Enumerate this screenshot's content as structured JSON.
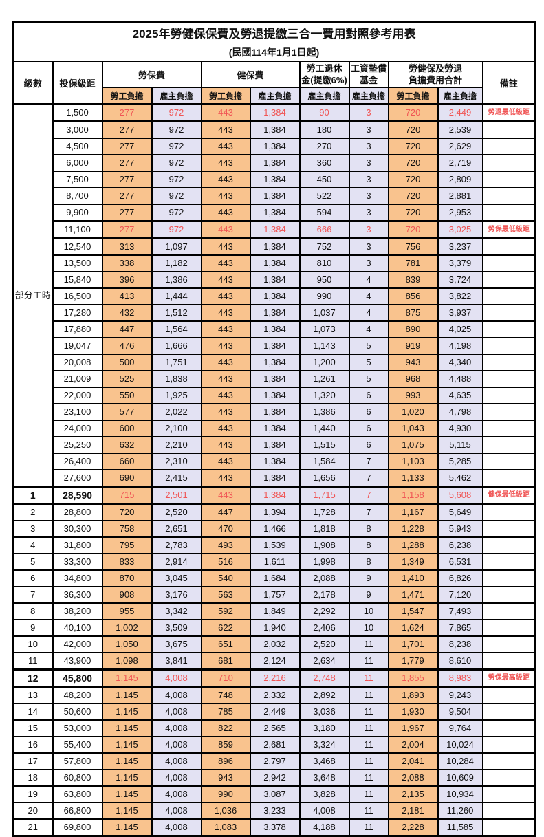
{
  "title": "2025年勞健保保費及勞退提繳三合一費用對照參考用表",
  "subtitle": "(民國114年1月1日起)",
  "colors": {
    "employee_bg": "#F9C38E",
    "employer_bg": "#E3E2F3",
    "highlight_text": "#F05555",
    "border": "#000000"
  },
  "columns": {
    "level": "級數",
    "bracket": "投保級距",
    "labor_insurance": "勞保費",
    "health_insurance": "健保費",
    "pension_l1": "勞工退休",
    "pension_l2": "金(提繳6%)",
    "wage_fund_l1": "工資墊償",
    "wage_fund_l2": "基金",
    "total_l1": "勞健保及勞退",
    "total_l2": "負擔費用合計",
    "remark": "備註",
    "employee_label": "勞工負擔",
    "employer_label": "雇主負擔"
  },
  "part_time_label": "部分工時",
  "rows": [
    {
      "lv": "",
      "br": "1,500",
      "v": [
        "277",
        "972",
        "443",
        "1,384",
        "90",
        "3",
        "720",
        "2,449"
      ],
      "rm": "勞退最低級距",
      "hl": true,
      "b": false
    },
    {
      "lv": "",
      "br": "3,000",
      "v": [
        "277",
        "972",
        "443",
        "1,384",
        "180",
        "3",
        "720",
        "2,539"
      ],
      "rm": "",
      "hl": false,
      "b": false
    },
    {
      "lv": "",
      "br": "4,500",
      "v": [
        "277",
        "972",
        "443",
        "1,384",
        "270",
        "3",
        "720",
        "2,629"
      ],
      "rm": "",
      "hl": false,
      "b": false
    },
    {
      "lv": "",
      "br": "6,000",
      "v": [
        "277",
        "972",
        "443",
        "1,384",
        "360",
        "3",
        "720",
        "2,719"
      ],
      "rm": "",
      "hl": false,
      "b": false
    },
    {
      "lv": "",
      "br": "7,500",
      "v": [
        "277",
        "972",
        "443",
        "1,384",
        "450",
        "3",
        "720",
        "2,809"
      ],
      "rm": "",
      "hl": false,
      "b": false
    },
    {
      "lv": "",
      "br": "8,700",
      "v": [
        "277",
        "972",
        "443",
        "1,384",
        "522",
        "3",
        "720",
        "2,881"
      ],
      "rm": "",
      "hl": false,
      "b": false
    },
    {
      "lv": "",
      "br": "9,900",
      "v": [
        "277",
        "972",
        "443",
        "1,384",
        "594",
        "3",
        "720",
        "2,953"
      ],
      "rm": "",
      "hl": false,
      "b": false
    },
    {
      "lv": "",
      "br": "11,100",
      "v": [
        "277",
        "972",
        "443",
        "1,384",
        "666",
        "3",
        "720",
        "3,025"
      ],
      "rm": "勞保最低級距",
      "hl": true,
      "b": false
    },
    {
      "lv": "",
      "br": "12,540",
      "v": [
        "313",
        "1,097",
        "443",
        "1,384",
        "752",
        "3",
        "756",
        "3,237"
      ],
      "rm": "",
      "hl": false,
      "b": false
    },
    {
      "lv": "",
      "br": "13,500",
      "v": [
        "338",
        "1,182",
        "443",
        "1,384",
        "810",
        "3",
        "781",
        "3,379"
      ],
      "rm": "",
      "hl": false,
      "b": false
    },
    {
      "lv": "",
      "br": "15,840",
      "v": [
        "396",
        "1,386",
        "443",
        "1,384",
        "950",
        "4",
        "839",
        "3,724"
      ],
      "rm": "",
      "hl": false,
      "b": false
    },
    {
      "lv": "",
      "br": "16,500",
      "v": [
        "413",
        "1,444",
        "443",
        "1,384",
        "990",
        "4",
        "856",
        "3,822"
      ],
      "rm": "",
      "hl": false,
      "b": false
    },
    {
      "lv": "",
      "br": "17,280",
      "v": [
        "432",
        "1,512",
        "443",
        "1,384",
        "1,037",
        "4",
        "875",
        "3,937"
      ],
      "rm": "",
      "hl": false,
      "b": false
    },
    {
      "lv": "",
      "br": "17,880",
      "v": [
        "447",
        "1,564",
        "443",
        "1,384",
        "1,073",
        "4",
        "890",
        "4,025"
      ],
      "rm": "",
      "hl": false,
      "b": false
    },
    {
      "lv": "",
      "br": "19,047",
      "v": [
        "476",
        "1,666",
        "443",
        "1,384",
        "1,143",
        "5",
        "919",
        "4,198"
      ],
      "rm": "",
      "hl": false,
      "b": false
    },
    {
      "lv": "",
      "br": "20,008",
      "v": [
        "500",
        "1,751",
        "443",
        "1,384",
        "1,200",
        "5",
        "943",
        "4,340"
      ],
      "rm": "",
      "hl": false,
      "b": false
    },
    {
      "lv": "",
      "br": "21,009",
      "v": [
        "525",
        "1,838",
        "443",
        "1,384",
        "1,261",
        "5",
        "968",
        "4,488"
      ],
      "rm": "",
      "hl": false,
      "b": false
    },
    {
      "lv": "",
      "br": "22,000",
      "v": [
        "550",
        "1,925",
        "443",
        "1,384",
        "1,320",
        "6",
        "993",
        "4,635"
      ],
      "rm": "",
      "hl": false,
      "b": false
    },
    {
      "lv": "",
      "br": "23,100",
      "v": [
        "577",
        "2,022",
        "443",
        "1,384",
        "1,386",
        "6",
        "1,020",
        "4,798"
      ],
      "rm": "",
      "hl": false,
      "b": false
    },
    {
      "lv": "",
      "br": "24,000",
      "v": [
        "600",
        "2,100",
        "443",
        "1,384",
        "1,440",
        "6",
        "1,043",
        "4,930"
      ],
      "rm": "",
      "hl": false,
      "b": false
    },
    {
      "lv": "",
      "br": "25,250",
      "v": [
        "632",
        "2,210",
        "443",
        "1,384",
        "1,515",
        "6",
        "1,075",
        "5,115"
      ],
      "rm": "",
      "hl": false,
      "b": false
    },
    {
      "lv": "",
      "br": "26,400",
      "v": [
        "660",
        "2,310",
        "443",
        "1,384",
        "1,584",
        "7",
        "1,103",
        "5,285"
      ],
      "rm": "",
      "hl": false,
      "b": false
    },
    {
      "lv": "",
      "br": "27,600",
      "v": [
        "690",
        "2,415",
        "443",
        "1,384",
        "1,656",
        "7",
        "1,133",
        "5,462"
      ],
      "rm": "",
      "hl": false,
      "b": false
    },
    {
      "lv": "1",
      "br": "28,590",
      "v": [
        "715",
        "2,501",
        "443",
        "1,384",
        "1,715",
        "7",
        "1,158",
        "5,608"
      ],
      "rm": "健保最低級距",
      "hl": true,
      "b": true
    },
    {
      "lv": "2",
      "br": "28,800",
      "v": [
        "720",
        "2,520",
        "447",
        "1,394",
        "1,728",
        "7",
        "1,167",
        "5,649"
      ],
      "rm": "",
      "hl": false,
      "b": false
    },
    {
      "lv": "3",
      "br": "30,300",
      "v": [
        "758",
        "2,651",
        "470",
        "1,466",
        "1,818",
        "8",
        "1,228",
        "5,943"
      ],
      "rm": "",
      "hl": false,
      "b": false
    },
    {
      "lv": "4",
      "br": "31,800",
      "v": [
        "795",
        "2,783",
        "493",
        "1,539",
        "1,908",
        "8",
        "1,288",
        "6,238"
      ],
      "rm": "",
      "hl": false,
      "b": false
    },
    {
      "lv": "5",
      "br": "33,300",
      "v": [
        "833",
        "2,914",
        "516",
        "1,611",
        "1,998",
        "8",
        "1,349",
        "6,531"
      ],
      "rm": "",
      "hl": false,
      "b": false
    },
    {
      "lv": "6",
      "br": "34,800",
      "v": [
        "870",
        "3,045",
        "540",
        "1,684",
        "2,088",
        "9",
        "1,410",
        "6,826"
      ],
      "rm": "",
      "hl": false,
      "b": false
    },
    {
      "lv": "7",
      "br": "36,300",
      "v": [
        "908",
        "3,176",
        "563",
        "1,757",
        "2,178",
        "9",
        "1,471",
        "7,120"
      ],
      "rm": "",
      "hl": false,
      "b": false
    },
    {
      "lv": "8",
      "br": "38,200",
      "v": [
        "955",
        "3,342",
        "592",
        "1,849",
        "2,292",
        "10",
        "1,547",
        "7,493"
      ],
      "rm": "",
      "hl": false,
      "b": false
    },
    {
      "lv": "9",
      "br": "40,100",
      "v": [
        "1,002",
        "3,509",
        "622",
        "1,940",
        "2,406",
        "10",
        "1,624",
        "7,865"
      ],
      "rm": "",
      "hl": false,
      "b": false
    },
    {
      "lv": "10",
      "br": "42,000",
      "v": [
        "1,050",
        "3,675",
        "651",
        "2,032",
        "2,520",
        "11",
        "1,701",
        "8,238"
      ],
      "rm": "",
      "hl": false,
      "b": false
    },
    {
      "lv": "11",
      "br": "43,900",
      "v": [
        "1,098",
        "3,841",
        "681",
        "2,124",
        "2,634",
        "11",
        "1,779",
        "8,610"
      ],
      "rm": "",
      "hl": false,
      "b": false
    },
    {
      "lv": "12",
      "br": "45,800",
      "v": [
        "1,145",
        "4,008",
        "710",
        "2,216",
        "2,748",
        "11",
        "1,855",
        "8,983"
      ],
      "rm": "勞保最高級距",
      "hl": true,
      "b": true
    },
    {
      "lv": "13",
      "br": "48,200",
      "v": [
        "1,145",
        "4,008",
        "748",
        "2,332",
        "2,892",
        "11",
        "1,893",
        "9,243"
      ],
      "rm": "",
      "hl": false,
      "b": false
    },
    {
      "lv": "14",
      "br": "50,600",
      "v": [
        "1,145",
        "4,008",
        "785",
        "2,449",
        "3,036",
        "11",
        "1,930",
        "9,504"
      ],
      "rm": "",
      "hl": false,
      "b": false
    },
    {
      "lv": "15",
      "br": "53,000",
      "v": [
        "1,145",
        "4,008",
        "822",
        "2,565",
        "3,180",
        "11",
        "1,967",
        "9,764"
      ],
      "rm": "",
      "hl": false,
      "b": false
    },
    {
      "lv": "16",
      "br": "55,400",
      "v": [
        "1,145",
        "4,008",
        "859",
        "2,681",
        "3,324",
        "11",
        "2,004",
        "10,024"
      ],
      "rm": "",
      "hl": false,
      "b": false
    },
    {
      "lv": "17",
      "br": "57,800",
      "v": [
        "1,145",
        "4,008",
        "896",
        "2,797",
        "3,468",
        "11",
        "2,041",
        "10,284"
      ],
      "rm": "",
      "hl": false,
      "b": false
    },
    {
      "lv": "18",
      "br": "60,800",
      "v": [
        "1,145",
        "4,008",
        "943",
        "2,942",
        "3,648",
        "11",
        "2,088",
        "10,609"
      ],
      "rm": "",
      "hl": false,
      "b": false
    },
    {
      "lv": "19",
      "br": "63,800",
      "v": [
        "1,145",
        "4,008",
        "990",
        "3,087",
        "3,828",
        "11",
        "2,135",
        "10,934"
      ],
      "rm": "",
      "hl": false,
      "b": false
    },
    {
      "lv": "20",
      "br": "66,800",
      "v": [
        "1,145",
        "4,008",
        "1,036",
        "3,233",
        "4,008",
        "11",
        "2,181",
        "11,260"
      ],
      "rm": "",
      "hl": false,
      "b": false
    },
    {
      "lv": "21",
      "br": "69,800",
      "v": [
        "1,145",
        "4,008",
        "1,083",
        "3,378",
        "4,188",
        "11",
        "2,228",
        "11,585"
      ],
      "rm": "",
      "hl": false,
      "b": false
    }
  ]
}
